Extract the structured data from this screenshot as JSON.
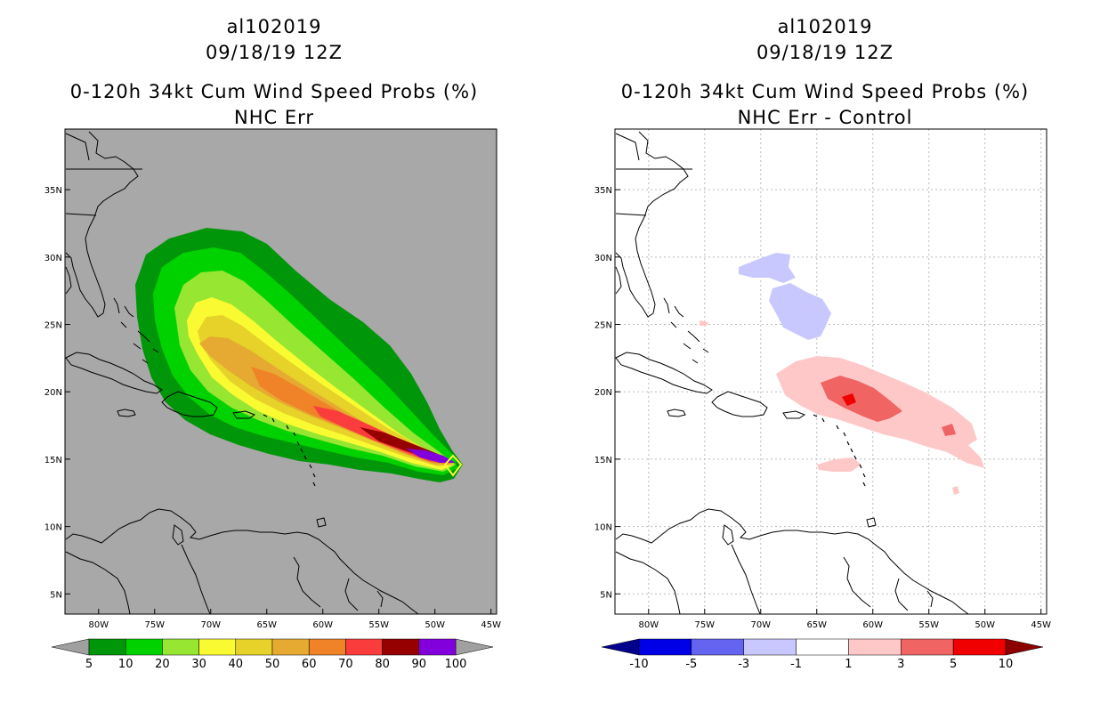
{
  "left": {
    "title_line1": "al102019",
    "title_line2": "09/18/19 12Z",
    "title_line3": "0-120h 34kt Cum Wind Speed Probs (%)",
    "title_line4": "NHC Err"
  },
  "right": {
    "title_line1": "al102019",
    "title_line2": "09/18/19 12Z",
    "title_line3": "0-120h 34kt Cum Wind Speed Probs (%)",
    "title_line4": "NHC Err - Control"
  },
  "axes": {
    "lon_labels": [
      "80W",
      "75W",
      "70W",
      "65W",
      "60W",
      "55W",
      "50W",
      "45W"
    ],
    "lon_values": [
      -80,
      -75,
      -70,
      -65,
      -60,
      -55,
      -50,
      -45
    ],
    "lat_labels": [
      "35N",
      "30N",
      "25N",
      "20N",
      "15N",
      "10N",
      "5N"
    ],
    "lat_values": [
      35,
      30,
      25,
      20,
      15,
      10,
      5
    ],
    "lon_range": [
      -83,
      -44.5
    ],
    "lat_range": [
      3.5,
      39.5
    ]
  },
  "colorbar_left": {
    "labels": [
      "5",
      "10",
      "20",
      "30",
      "40",
      "50",
      "60",
      "70",
      "80",
      "90",
      "100"
    ],
    "colors": [
      "#00960a",
      "#00d200",
      "#96e632",
      "#fafa32",
      "#e6d228",
      "#e6aa32",
      "#f08228",
      "#fa3c3c",
      "#960000",
      "#8200dc"
    ],
    "under_color": "#a0a0a0",
    "over_color": "#a0a0a0"
  },
  "colorbar_right": {
    "labels": [
      "-10",
      "-5",
      "-3",
      "-1",
      "1",
      "3",
      "5",
      "10"
    ],
    "colors": [
      "#0000e6",
      "#6464f0",
      "#c8c8ff",
      "#ffffff",
      "#ffc8c8",
      "#f06464",
      "#f00000"
    ],
    "under_color": "#00008c",
    "over_color": "#8c0000"
  },
  "map_colors": {
    "left_background": "#a8a8a8",
    "right_background": "#ffffff",
    "coastline": "#000000",
    "grid": "#bbbbbb"
  }
}
